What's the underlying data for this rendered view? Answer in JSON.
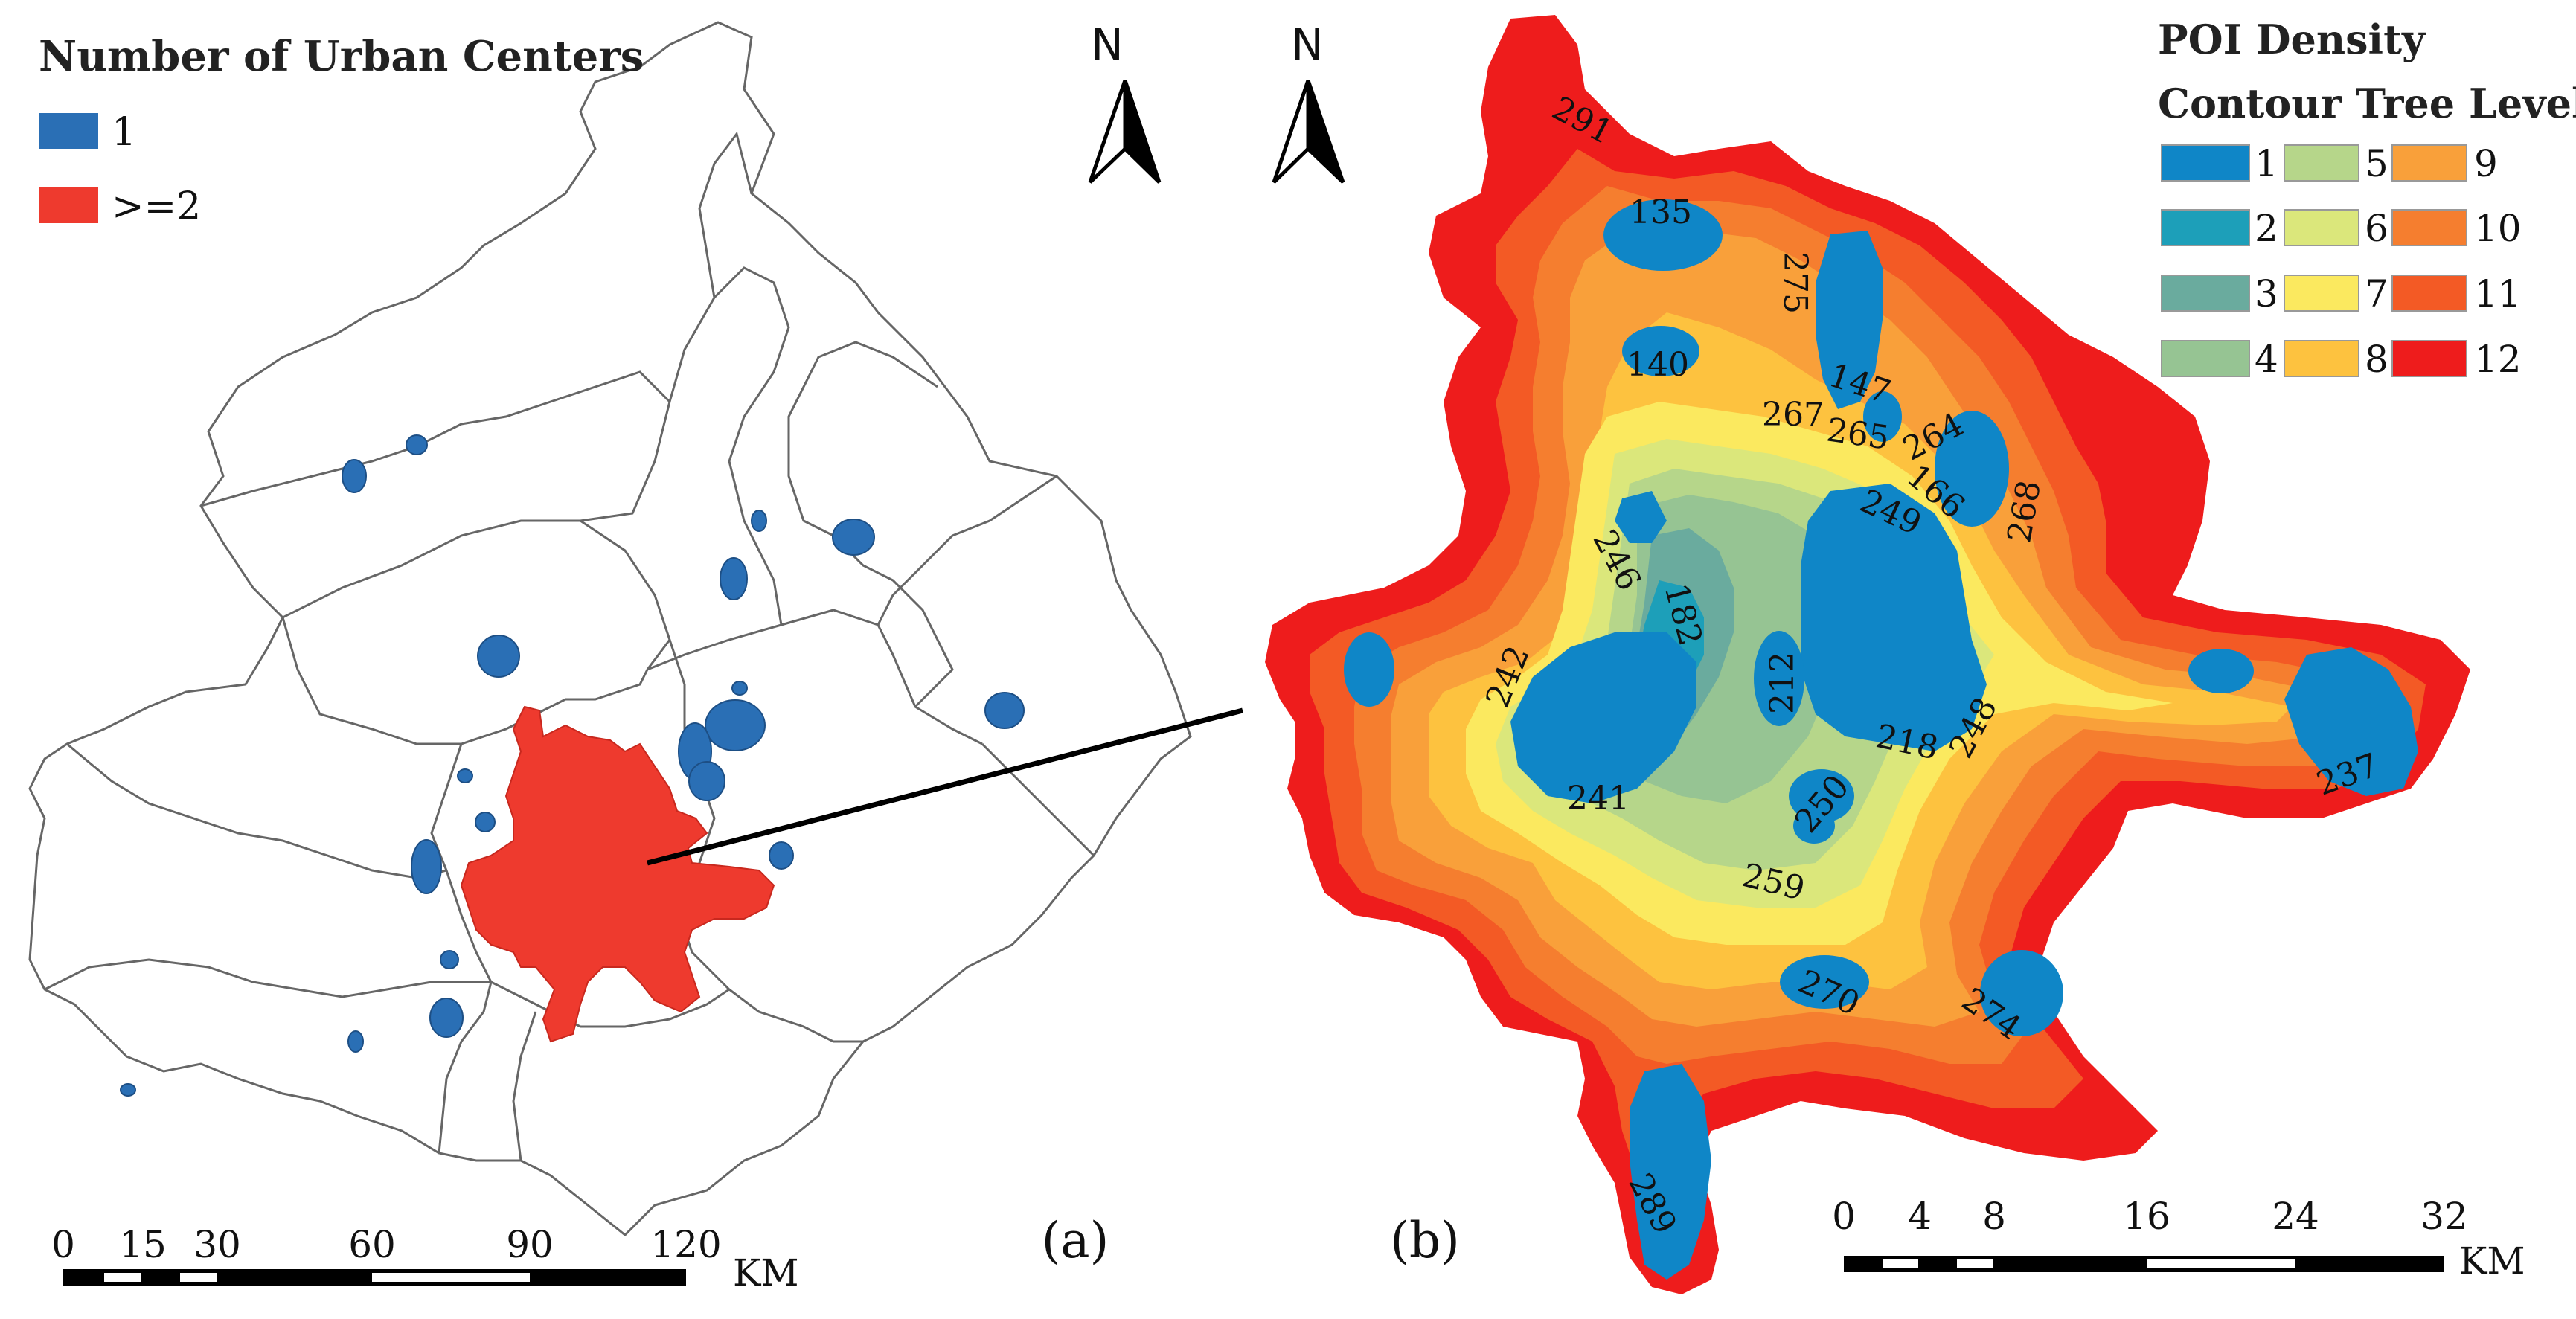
{
  "panel_a": {
    "legend_title": "Number of Urban Centers",
    "legend_items": [
      {
        "label": "1",
        "color": "#2a6fb5"
      },
      {
        "label": ">=2",
        "color": "#ee3a2e"
      }
    ],
    "north_label": "N",
    "scale_ticks": [
      "0",
      "15",
      "30",
      "60",
      "90",
      "120"
    ],
    "scale_unit": "KM",
    "panel_label": "(a)"
  },
  "panel_b": {
    "legend_title_line1": "POI Density",
    "legend_title_line2": "Contour Tree Level",
    "legend_levels": [
      {
        "label": "1",
        "color": "#0f86c7"
      },
      {
        "label": "2",
        "color": "#1d9fb9"
      },
      {
        "label": "3",
        "color": "#6aab9e"
      },
      {
        "label": "4",
        "color": "#96c493"
      },
      {
        "label": "5",
        "color": "#b6d68a"
      },
      {
        "label": "6",
        "color": "#dbe77b"
      },
      {
        "label": "7",
        "color": "#fbe95f"
      },
      {
        "label": "8",
        "color": "#fdc23f"
      },
      {
        "label": "9",
        "color": "#f9a03a"
      },
      {
        "label": "10",
        "color": "#f57e2f"
      },
      {
        "label": "11",
        "color": "#f35a25"
      },
      {
        "label": "12",
        "color": "#ee1c1c"
      }
    ],
    "north_label": "N",
    "contour_ids": [
      "291",
      "135",
      "275",
      "140",
      "147",
      "267",
      "265",
      "264",
      "166",
      "268",
      "249",
      "246",
      "182",
      "242",
      "212",
      "218",
      "248",
      "241",
      "250",
      "237",
      "259",
      "270",
      "274",
      "289"
    ],
    "scale_ticks": [
      "0",
      "4",
      "8",
      "16",
      "24",
      "32"
    ],
    "scale_unit": "KM",
    "panel_label": "(b)"
  }
}
